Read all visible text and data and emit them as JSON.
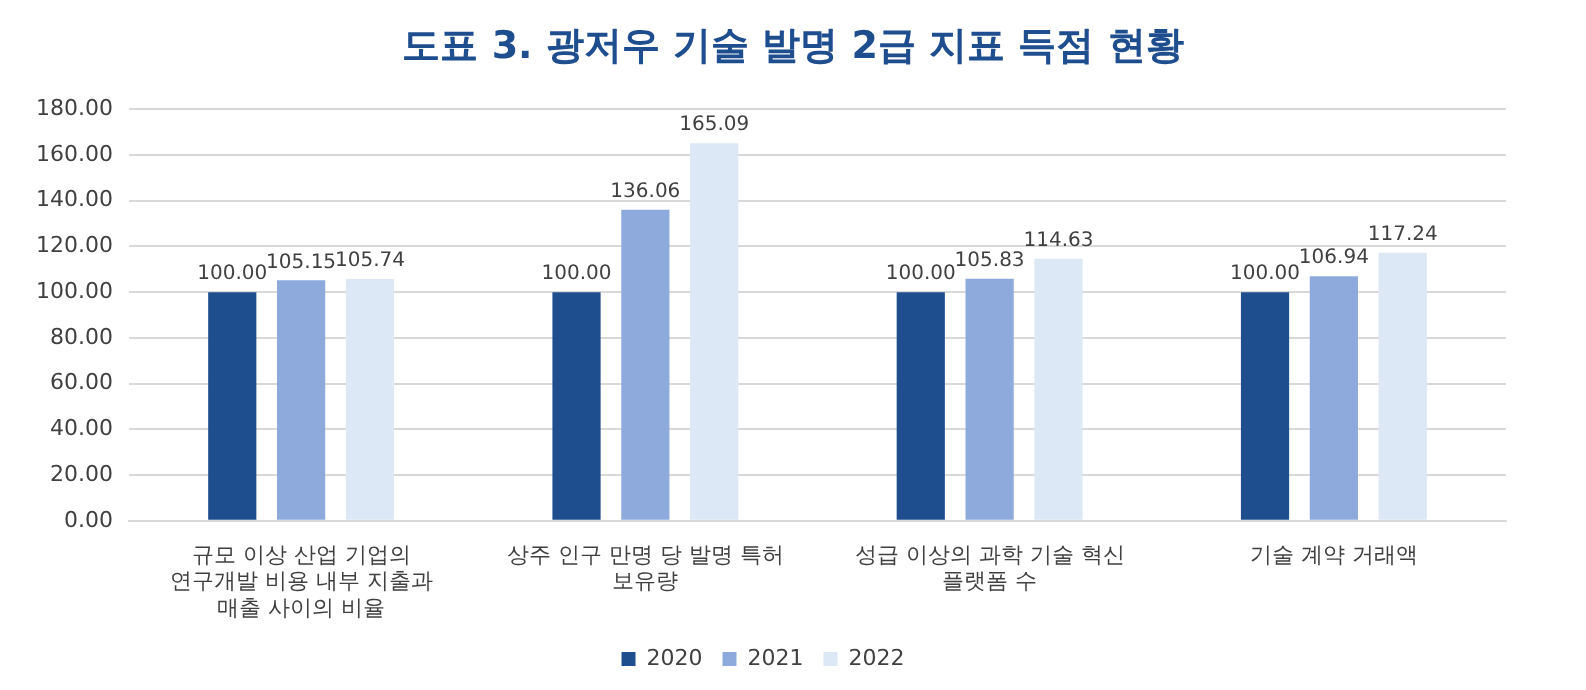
{
  "chart_data": {
    "type": "bar",
    "title": "도표 3. 광저우 기술 발명 2급 지표 득점 현황",
    "categories": [
      "규모 이상 산업 기업의 연구개발 비용 내부 지출과 매출 사이의 비율",
      "상주 인구 만명 당 발명 특허 보유량",
      "성급 이상의 과학 기술 혁신 플랫폼 수",
      "기술 계약 거래액"
    ],
    "series": [
      {
        "name": "2020",
        "color": "#1f4e8f",
        "values": [
          100,
          100,
          100,
          100
        ],
        "value_labels": [
          "100.00",
          "100.00",
          "100.00",
          "100.00"
        ]
      },
      {
        "name": "2021",
        "color": "#8eaadc",
        "values": [
          105.15,
          136.06,
          105.83,
          106.94
        ],
        "value_labels": [
          "105.15",
          "136.06",
          "105.83",
          "106.94"
        ]
      },
      {
        "name": "2022",
        "color": "#dce8f5",
        "values": [
          105.74,
          165.09,
          114.63,
          117.24
        ],
        "value_labels": [
          "105.74",
          "165.09",
          "114.63",
          "117.24"
        ]
      }
    ],
    "ylim": [
      0,
      180
    ],
    "yticks": [
      {
        "value": 0,
        "label": "0.00"
      },
      {
        "value": 20,
        "label": "20.00"
      },
      {
        "value": 40,
        "label": "40.00"
      },
      {
        "value": 60,
        "label": "60.00"
      },
      {
        "value": 80,
        "label": "80.00"
      },
      {
        "value": 100,
        "label": "100.00"
      },
      {
        "value": 120,
        "label": "120.00"
      },
      {
        "value": 140,
        "label": "140.00"
      },
      {
        "value": 160,
        "label": "160.00"
      },
      {
        "value": 180,
        "label": "180.00"
      }
    ],
    "grid": "y",
    "legend": "bottom"
  }
}
